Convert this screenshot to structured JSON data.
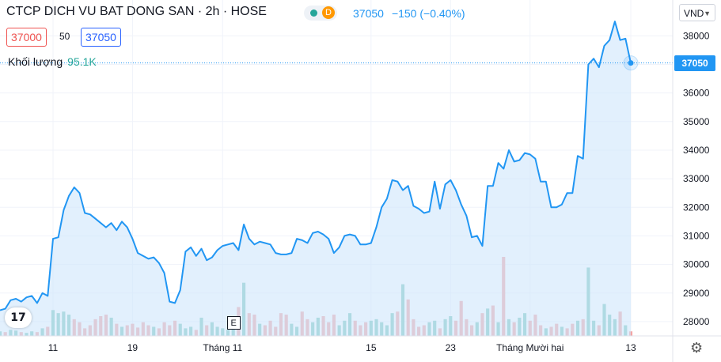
{
  "header": {
    "title": "CTCP DICH VU BAT DONG SAN · 2h · HOSE",
    "badge": "D",
    "last": "37050",
    "change": "−150 (−0.40%)"
  },
  "toolbar": {
    "bid": "37000",
    "spread": "50",
    "ask": "37050"
  },
  "volume": {
    "label": "Khối lượng",
    "value": "95.1K"
  },
  "currency": "VND",
  "last_price_tag": "37050",
  "colors": {
    "line": "#2196f3",
    "fill": "#cfe6fb",
    "vol_up": "#80c8bd",
    "vol_down": "#f2a5a5",
    "last_tag": "#2196f3"
  },
  "icons": {
    "settings": "gear-icon",
    "logo": "tradingview-logo-icon",
    "event": "earnings-marker-icon"
  },
  "chart_data": {
    "type": "line",
    "ylim": [
      27500,
      38700
    ],
    "y_ticks": [
      28000,
      29000,
      30000,
      31000,
      32000,
      33000,
      34000,
      35000,
      36000,
      37000,
      38000
    ],
    "x_tick_labels": [
      {
        "label": "11",
        "i": 10
      },
      {
        "label": "19",
        "i": 25
      },
      {
        "label": "Tháng 11",
        "i": 42
      },
      {
        "label": "15",
        "i": 70
      },
      {
        "label": "23",
        "i": 85
      },
      {
        "label": "Tháng Mười hai",
        "i": 100
      },
      {
        "label": "13",
        "i": 119
      }
    ],
    "event_marker": {
      "label": "E",
      "i": 44
    },
    "close": [
      28400,
      28450,
      28750,
      28800,
      28700,
      28850,
      28900,
      28650,
      29000,
      28900,
      30900,
      30950,
      31900,
      32400,
      32700,
      32500,
      31800,
      31750,
      31600,
      31450,
      31300,
      31450,
      31200,
      31500,
      31300,
      30900,
      30400,
      30300,
      30200,
      30250,
      30050,
      29700,
      28700,
      28650,
      29100,
      30450,
      30600,
      30300,
      30550,
      30150,
      30250,
      30500,
      30650,
      30700,
      30750,
      30500,
      31400,
      30900,
      30700,
      30800,
      30750,
      30700,
      30400,
      30350,
      30350,
      30400,
      30900,
      30850,
      30750,
      31100,
      31150,
      31050,
      30900,
      30400,
      30600,
      31000,
      31050,
      31000,
      30700,
      30700,
      30750,
      31300,
      32000,
      32300,
      32950,
      32900,
      32600,
      32750,
      32050,
      31950,
      31800,
      31850,
      32900,
      31950,
      32800,
      32950,
      32600,
      32100,
      31700,
      30950,
      31000,
      30650,
      32750,
      32750,
      33550,
      33350,
      34000,
      33600,
      33650,
      33900,
      33850,
      33700,
      32900,
      32900,
      32000,
      32000,
      32100,
      32500,
      32500,
      33800,
      33700,
      37000,
      37200,
      36900,
      37650,
      37850,
      38500,
      37850,
      37900,
      37050
    ],
    "volume_max_label": "",
    "volume": [
      6,
      5,
      8,
      7,
      5,
      4,
      6,
      5,
      10,
      12,
      34,
      30,
      32,
      28,
      22,
      18,
      10,
      14,
      22,
      26,
      28,
      24,
      16,
      12,
      14,
      16,
      11,
      18,
      14,
      12,
      10,
      18,
      14,
      20,
      16,
      10,
      12,
      8,
      24,
      14,
      18,
      12,
      10,
      8,
      26,
      38,
      70,
      30,
      28,
      16,
      14,
      20,
      12,
      30,
      28,
      16,
      12,
      32,
      22,
      18,
      24,
      26,
      18,
      28,
      14,
      20,
      30,
      20,
      14,
      18,
      20,
      22,
      18,
      14,
      30,
      32,
      68,
      48,
      22,
      12,
      14,
      18,
      20,
      10,
      22,
      26,
      20,
      46,
      22,
      14,
      18,
      30,
      36,
      40,
      18,
      104,
      22,
      18,
      24,
      30,
      20,
      28,
      14,
      10,
      12,
      16,
      12,
      10,
      16,
      20,
      22,
      90,
      20,
      14,
      42,
      28,
      22,
      32,
      14,
      6
    ],
    "volume_up": [
      true,
      false,
      true,
      true,
      false,
      true,
      true,
      false,
      true,
      false,
      true,
      true,
      true,
      true,
      false,
      false,
      false,
      false,
      false,
      false,
      false,
      true,
      false,
      true,
      false,
      false,
      false,
      false,
      false,
      true,
      false,
      false,
      false,
      false,
      true,
      true,
      true,
      false,
      true,
      false,
      true,
      true,
      true,
      true,
      true,
      false,
      true,
      false,
      false,
      true,
      false,
      false,
      false,
      false,
      false,
      true,
      true,
      false,
      false,
      true,
      true,
      false,
      false,
      false,
      true,
      true,
      true,
      false,
      false,
      false,
      true,
      true,
      true,
      true,
      true,
      false,
      true,
      false,
      false,
      false,
      false,
      true,
      true,
      false,
      true,
      true,
      false,
      false,
      false,
      false,
      true,
      false,
      true,
      false,
      true,
      false,
      true,
      false,
      true,
      true,
      false,
      false,
      false,
      true,
      false,
      false,
      true,
      false,
      false,
      true,
      false,
      true,
      true,
      false,
      true,
      true,
      true,
      false,
      true,
      false
    ]
  }
}
